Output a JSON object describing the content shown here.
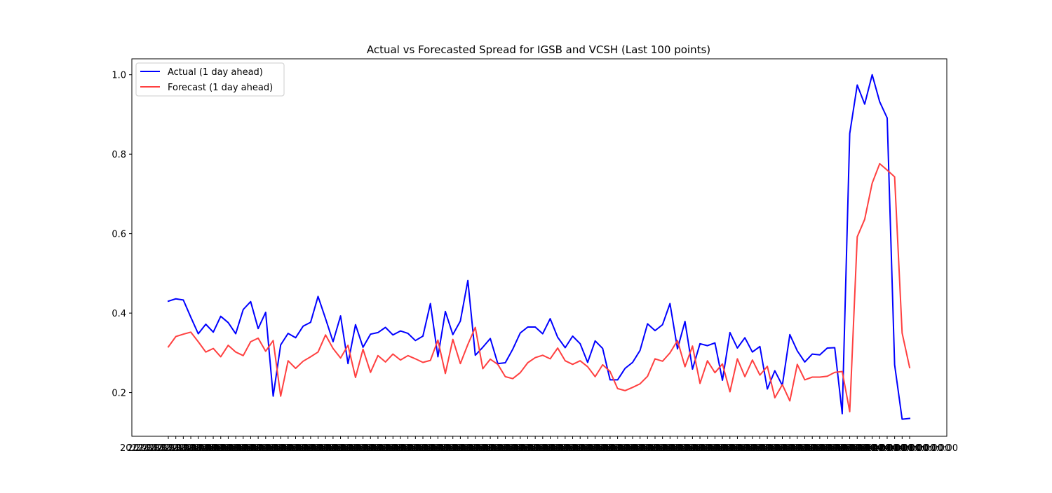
{
  "chart_data": {
    "type": "line",
    "title": "Actual vs Forecasted Spread for IGSB and VCSH (Last 100 points)",
    "xlabel": "",
    "ylabel": "",
    "ylim": [
      0.09,
      1.04
    ],
    "yticks": [
      "0.2",
      "0.4",
      "0.6",
      "0.8",
      "1.0"
    ],
    "grid": false,
    "legend_position": "upper-left",
    "x_tick_labels_overlapping": "2022-01-01 00:00:00",
    "series": [
      {
        "name": "Actual (1 day ahead)",
        "color": "#0000ff",
        "values": [
          0.43,
          0.436,
          0.433,
          0.39,
          0.348,
          0.372,
          0.352,
          0.392,
          0.376,
          0.348,
          0.409,
          0.429,
          0.361,
          0.402,
          0.191,
          0.32,
          0.349,
          0.338,
          0.367,
          0.377,
          0.442,
          0.386,
          0.328,
          0.393,
          0.273,
          0.371,
          0.314,
          0.347,
          0.351,
          0.364,
          0.345,
          0.355,
          0.349,
          0.331,
          0.342,
          0.424,
          0.29,
          0.404,
          0.346,
          0.38,
          0.482,
          0.294,
          0.314,
          0.336,
          0.273,
          0.275,
          0.309,
          0.35,
          0.365,
          0.365,
          0.348,
          0.386,
          0.339,
          0.313,
          0.342,
          0.323,
          0.276,
          0.33,
          0.311,
          0.232,
          0.232,
          0.261,
          0.276,
          0.306,
          0.373,
          0.356,
          0.371,
          0.424,
          0.31,
          0.379,
          0.259,
          0.323,
          0.318,
          0.325,
          0.231,
          0.351,
          0.312,
          0.338,
          0.302,
          0.316,
          0.209,
          0.255,
          0.218,
          0.346,
          0.305,
          0.277,
          0.297,
          0.295,
          0.312,
          0.313,
          0.147,
          0.852,
          0.974,
          0.926,
          1.0,
          0.932,
          0.891,
          0.27,
          0.133,
          0.135
        ]
      },
      {
        "name": "Forecast (1 day ahead)",
        "color": "#ff4040",
        "values": [
          0.315,
          0.341,
          0.347,
          0.352,
          0.328,
          0.302,
          0.311,
          0.29,
          0.319,
          0.302,
          0.293,
          0.328,
          0.337,
          0.304,
          0.331,
          0.191,
          0.28,
          0.261,
          0.279,
          0.29,
          0.302,
          0.345,
          0.311,
          0.287,
          0.319,
          0.238,
          0.309,
          0.251,
          0.293,
          0.277,
          0.297,
          0.282,
          0.293,
          0.285,
          0.276,
          0.281,
          0.332,
          0.248,
          0.334,
          0.273,
          0.321,
          0.364,
          0.26,
          0.284,
          0.271,
          0.24,
          0.235,
          0.25,
          0.275,
          0.288,
          0.294,
          0.285,
          0.312,
          0.28,
          0.271,
          0.28,
          0.265,
          0.24,
          0.27,
          0.253,
          0.21,
          0.205,
          0.213,
          0.222,
          0.241,
          0.285,
          0.279,
          0.3,
          0.331,
          0.265,
          0.317,
          0.223,
          0.28,
          0.25,
          0.272,
          0.202,
          0.285,
          0.24,
          0.282,
          0.244,
          0.266,
          0.187,
          0.22,
          0.179,
          0.271,
          0.232,
          0.239,
          0.239,
          0.241,
          0.251,
          0.253,
          0.152,
          0.592,
          0.636,
          0.727,
          0.776,
          0.76,
          0.743,
          0.35,
          0.263
        ]
      }
    ]
  }
}
